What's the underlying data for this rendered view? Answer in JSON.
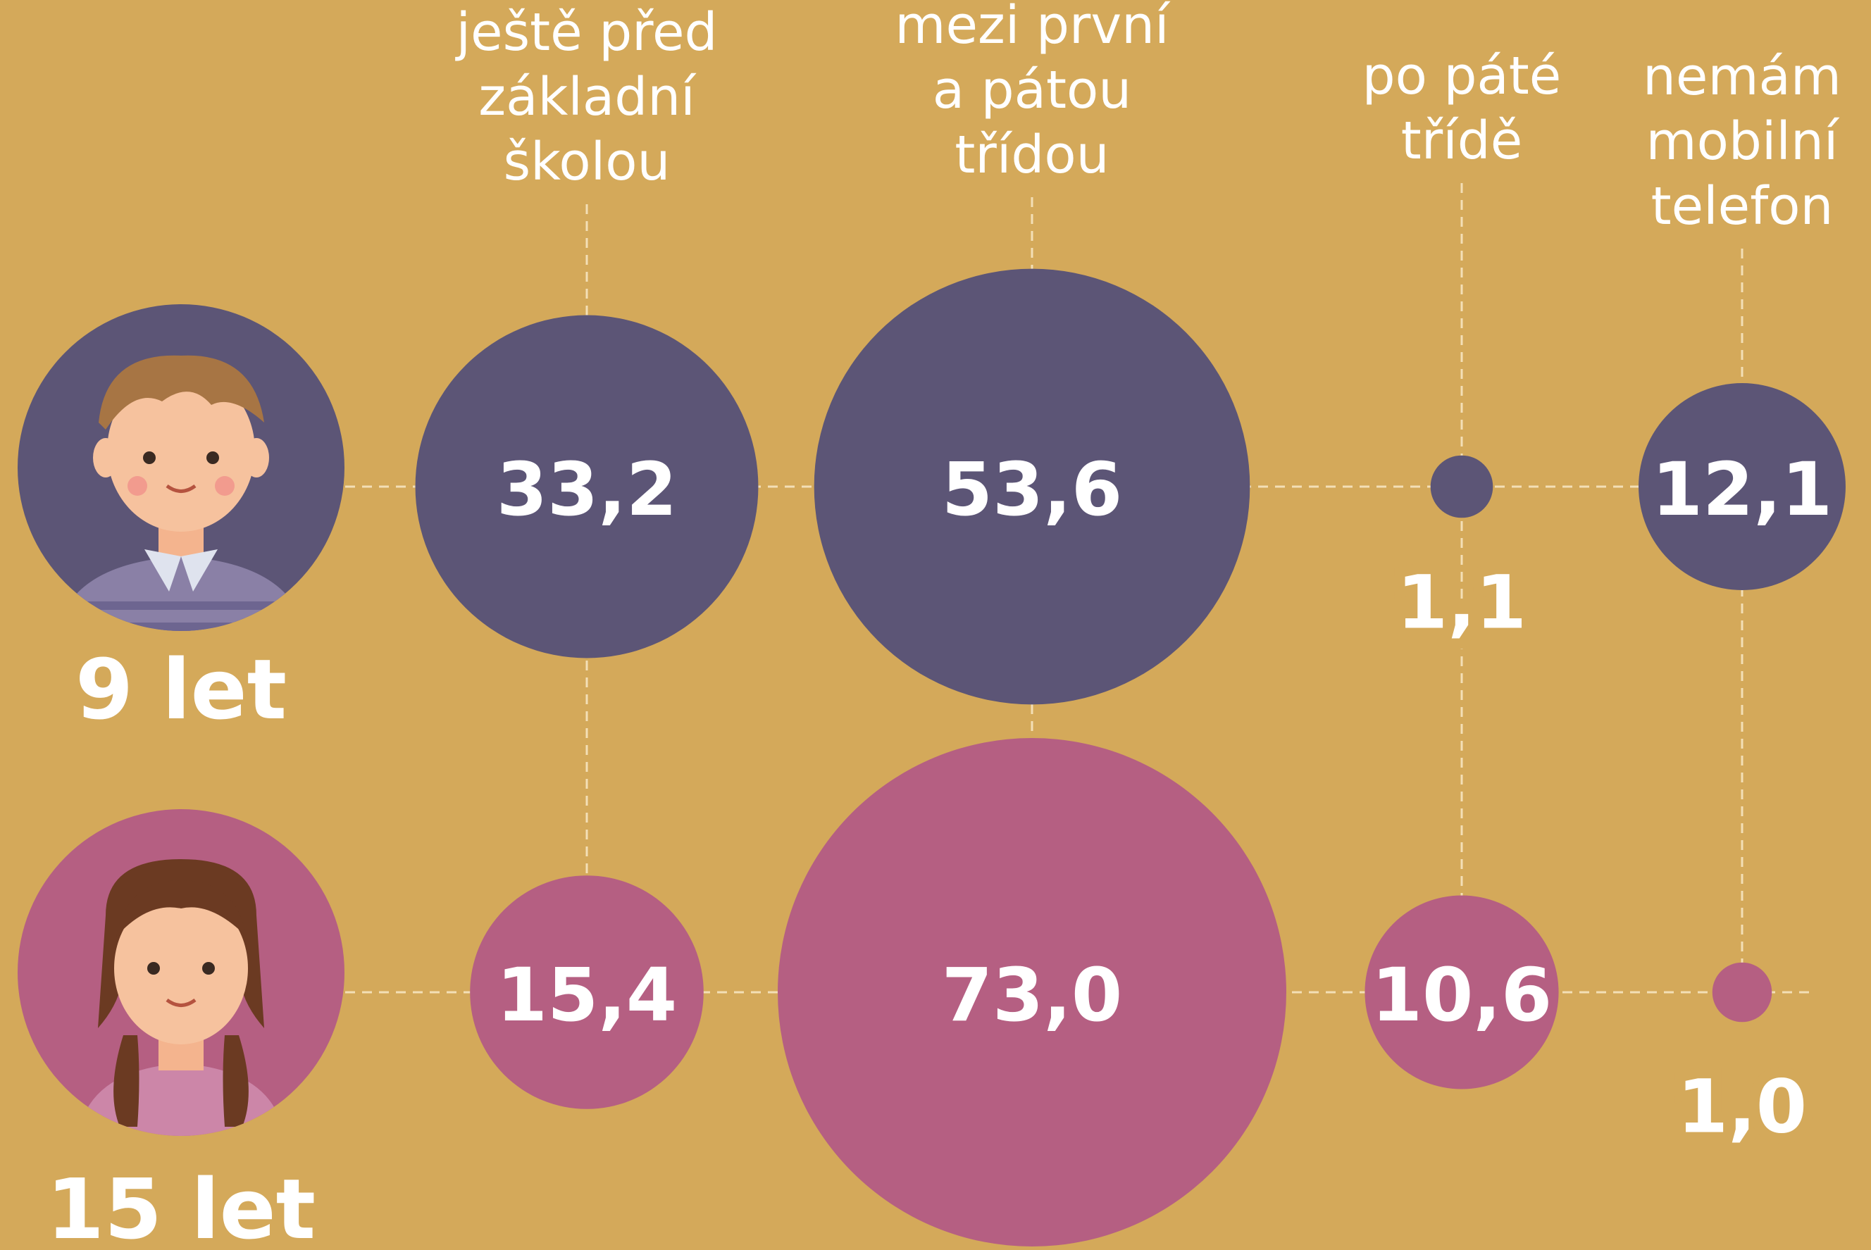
{
  "chart_data": {
    "type": "bubble",
    "categories": [
      "ještě před\nzákladní\nškolou",
      "mezi první\na pátou\ntřídou",
      "po páté\ntřídě",
      "nemám\nmobilní\ntelefon"
    ],
    "series": [
      {
        "name": "9 let",
        "color": "#5c5576",
        "values": [
          33.2,
          53.6,
          1.1,
          12.1
        ],
        "value_labels": [
          "33,2",
          "53,6",
          "1,1",
          "12,1"
        ]
      },
      {
        "name": "15 let",
        "color": "#b55f82",
        "values": [
          15.4,
          73.0,
          10.6,
          1.0
        ],
        "value_labels": [
          "15,4",
          "73,0",
          "10,6",
          "1,0"
        ]
      }
    ]
  }
}
